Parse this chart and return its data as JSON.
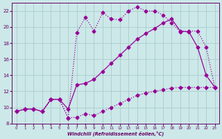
{
  "xlabel": "Windchill (Refroidissement éolien,°C)",
  "background_color": "#cce8e8",
  "grid_color": "#aacccc",
  "line_color": "#990099",
  "xlim": [
    -0.5,
    23.5
  ],
  "ylim": [
    8,
    23
  ],
  "xticks": [
    0,
    1,
    2,
    3,
    4,
    5,
    6,
    7,
    8,
    9,
    10,
    11,
    12,
    13,
    14,
    15,
    16,
    17,
    18,
    19,
    20,
    21,
    22,
    23
  ],
  "yticks": [
    8,
    10,
    12,
    14,
    16,
    18,
    20,
    22
  ],
  "line1_x": [
    0,
    1,
    2,
    3,
    4,
    5,
    6,
    7,
    8,
    9,
    10,
    11,
    12,
    13,
    14,
    15,
    16,
    17,
    18,
    19,
    20,
    21,
    22,
    23
  ],
  "line1_y": [
    9.5,
    9.8,
    9.8,
    9.5,
    11.0,
    11.0,
    8.7,
    19.3,
    21.2,
    19.5,
    21.8,
    21.0,
    20.9,
    22.0,
    22.5,
    22.0,
    22.0,
    21.5,
    20.5,
    19.4,
    19.5,
    19.5,
    17.5,
    12.5
  ],
  "line2_x": [
    0,
    1,
    2,
    3,
    4,
    5,
    6,
    7,
    8,
    9,
    10,
    11,
    12,
    13,
    14,
    15,
    16,
    17,
    18,
    19,
    20,
    21,
    22,
    23
  ],
  "line2_y": [
    9.5,
    9.8,
    9.8,
    9.5,
    11.0,
    11.0,
    9.8,
    12.8,
    13.0,
    13.5,
    14.5,
    15.5,
    16.5,
    17.5,
    18.5,
    19.2,
    19.8,
    20.5,
    21.0,
    19.5,
    19.4,
    17.5,
    14.0,
    12.5
  ],
  "line3_x": [
    0,
    1,
    2,
    3,
    4,
    5,
    6,
    7,
    8,
    9,
    10,
    11,
    12,
    13,
    14,
    15,
    16,
    17,
    18,
    19,
    20,
    21,
    22,
    23
  ],
  "line3_y": [
    9.5,
    9.8,
    9.8,
    9.5,
    11.0,
    11.0,
    8.7,
    8.8,
    9.2,
    9.0,
    9.5,
    10.0,
    10.5,
    11.0,
    11.5,
    11.8,
    12.0,
    12.2,
    12.4,
    12.5,
    12.5,
    12.5,
    12.5,
    12.5
  ],
  "line1_style": "--",
  "line2_style": "-",
  "line3_style": "--",
  "marker": "D",
  "markersize": 2.5,
  "linewidth": 0.9
}
